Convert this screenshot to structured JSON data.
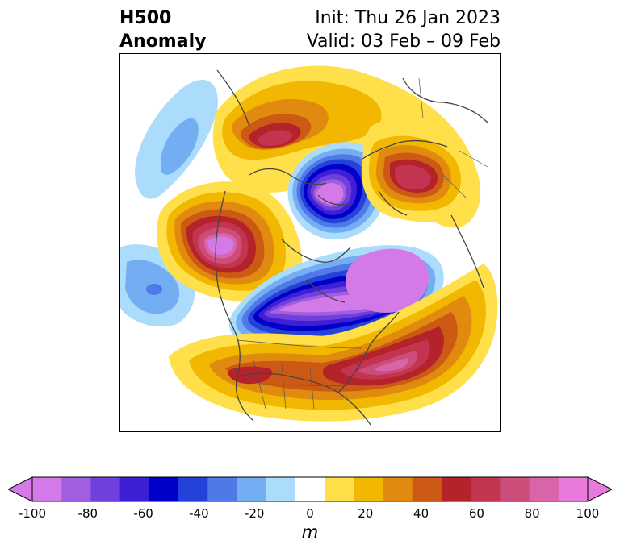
{
  "title": {
    "left_line1": "H500",
    "left_line2": "Anomaly",
    "right_line1": "Init: Thu 26 Jan 2023",
    "right_line2": "Valid: 03 Feb – 09 Feb"
  },
  "colorbar": {
    "unit": "m",
    "extend": "both",
    "levels": [
      -100,
      -90,
      -80,
      -70,
      -60,
      -50,
      -40,
      -30,
      -20,
      -10,
      10,
      20,
      30,
      40,
      50,
      60,
      70,
      80,
      90,
      100
    ],
    "colors": [
      "#d47ae8",
      "#a15ee0",
      "#7040dc",
      "#3e1fd6",
      "#0000c8",
      "#2441d9",
      "#4f79e6",
      "#74aef2",
      "#abdcfb",
      "#ffffff",
      "#ffe04a",
      "#f2b700",
      "#e08b10",
      "#cc5a14",
      "#b4232a",
      "#c2344f",
      "#cc4d7a",
      "#d964a8",
      "#e87adb"
    ],
    "under_color": "#d47ae8",
    "over_color": "#e87adb",
    "ticks": [
      "-100",
      "-80",
      "-60",
      "-40",
      "-20",
      "0",
      "20",
      "40",
      "60",
      "80",
      "100"
    ]
  },
  "map": {
    "projection": "polar stereographic (North America / North Pacific / Arctic)",
    "anomaly_centers": [
      {
        "region": "Alaska / Bering Sea",
        "sign": "positive",
        "peak_m": 100
      },
      {
        "region": "Western Canada / Northwest Pacific",
        "sign": "positive",
        "peak_m": 100
      },
      {
        "region": "Central Arctic / Greenland",
        "sign": "negative",
        "peak_m": -100
      },
      {
        "region": "Hudson Bay / Labrador / Eastern Canada",
        "sign": "negative",
        "peak_m": -100
      },
      {
        "region": "Central Pacific",
        "sign": "negative",
        "peak_m": -40
      },
      {
        "region": "Northwest Pacific (Kamchatka)",
        "sign": "negative",
        "peak_m": -30
      },
      {
        "region": "Northern Europe / Scandinavia",
        "sign": "positive",
        "peak_m": 70
      },
      {
        "region": "Eastern United States / Western Atlantic",
        "sign": "positive",
        "peak_m": 100
      },
      {
        "region": "Southwestern United States / Mexico",
        "sign": "positive",
        "peak_m": 60
      }
    ]
  }
}
